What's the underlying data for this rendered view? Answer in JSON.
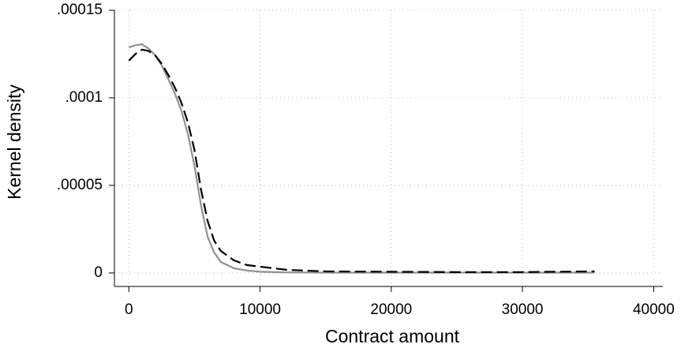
{
  "chart_data": {
    "type": "line",
    "x_label": "Contract amount",
    "y_label": "Kernel density",
    "x": [
      0,
      500,
      1000,
      1500,
      2000,
      2500,
      3000,
      3500,
      4000,
      4500,
      5000,
      5500,
      6000,
      6500,
      7000,
      8000,
      9000,
      10000,
      12000,
      15000,
      20000,
      25000,
      30000,
      35500
    ],
    "series": [
      {
        "color": "#909090",
        "dash": false,
        "values": [
          0.0001288,
          0.00013,
          0.0001306,
          0.0001282,
          0.0001243,
          0.0001185,
          0.0001108,
          0.0001025,
          9.28e-05,
          7.93e-05,
          6.13e-05,
          3.87e-05,
          2.07e-05,
          1.17e-05,
          6.3e-06,
          2.7e-06,
          1.4e-06,
          7e-07,
          3e-07,
          2e-07,
          2e-07,
          2e-07,
          2e-07,
          2e-07
        ]
      },
      {
        "color": "#000000",
        "dash": true,
        "values": [
          0.0001212,
          0.000125,
          0.0001275,
          0.0001268,
          0.0001243,
          0.0001195,
          0.0001131,
          0.000106,
          9.73e-05,
          8.6e-05,
          7.03e-05,
          4.77e-05,
          2.97e-05,
          1.85e-05,
          1.26e-05,
          7.2e-06,
          4.5e-06,
          3.6e-06,
          1.8e-06,
          9e-07,
          7e-07,
          5e-07,
          5e-07,
          9e-07
        ]
      }
    ],
    "xlim": [
      -1100,
      40700
    ],
    "ylim": [
      -7.7e-06,
      0.00015
    ],
    "xticks": [
      0,
      10000,
      20000,
      30000,
      40000
    ],
    "yticks": [
      0,
      {
        "value": 5e-05,
        "label": ".00005"
      },
      {
        "value": 0.0001,
        "label": ".0001"
      },
      {
        "value": 0.00015,
        "label": ".00015"
      }
    ],
    "grid": true
  }
}
